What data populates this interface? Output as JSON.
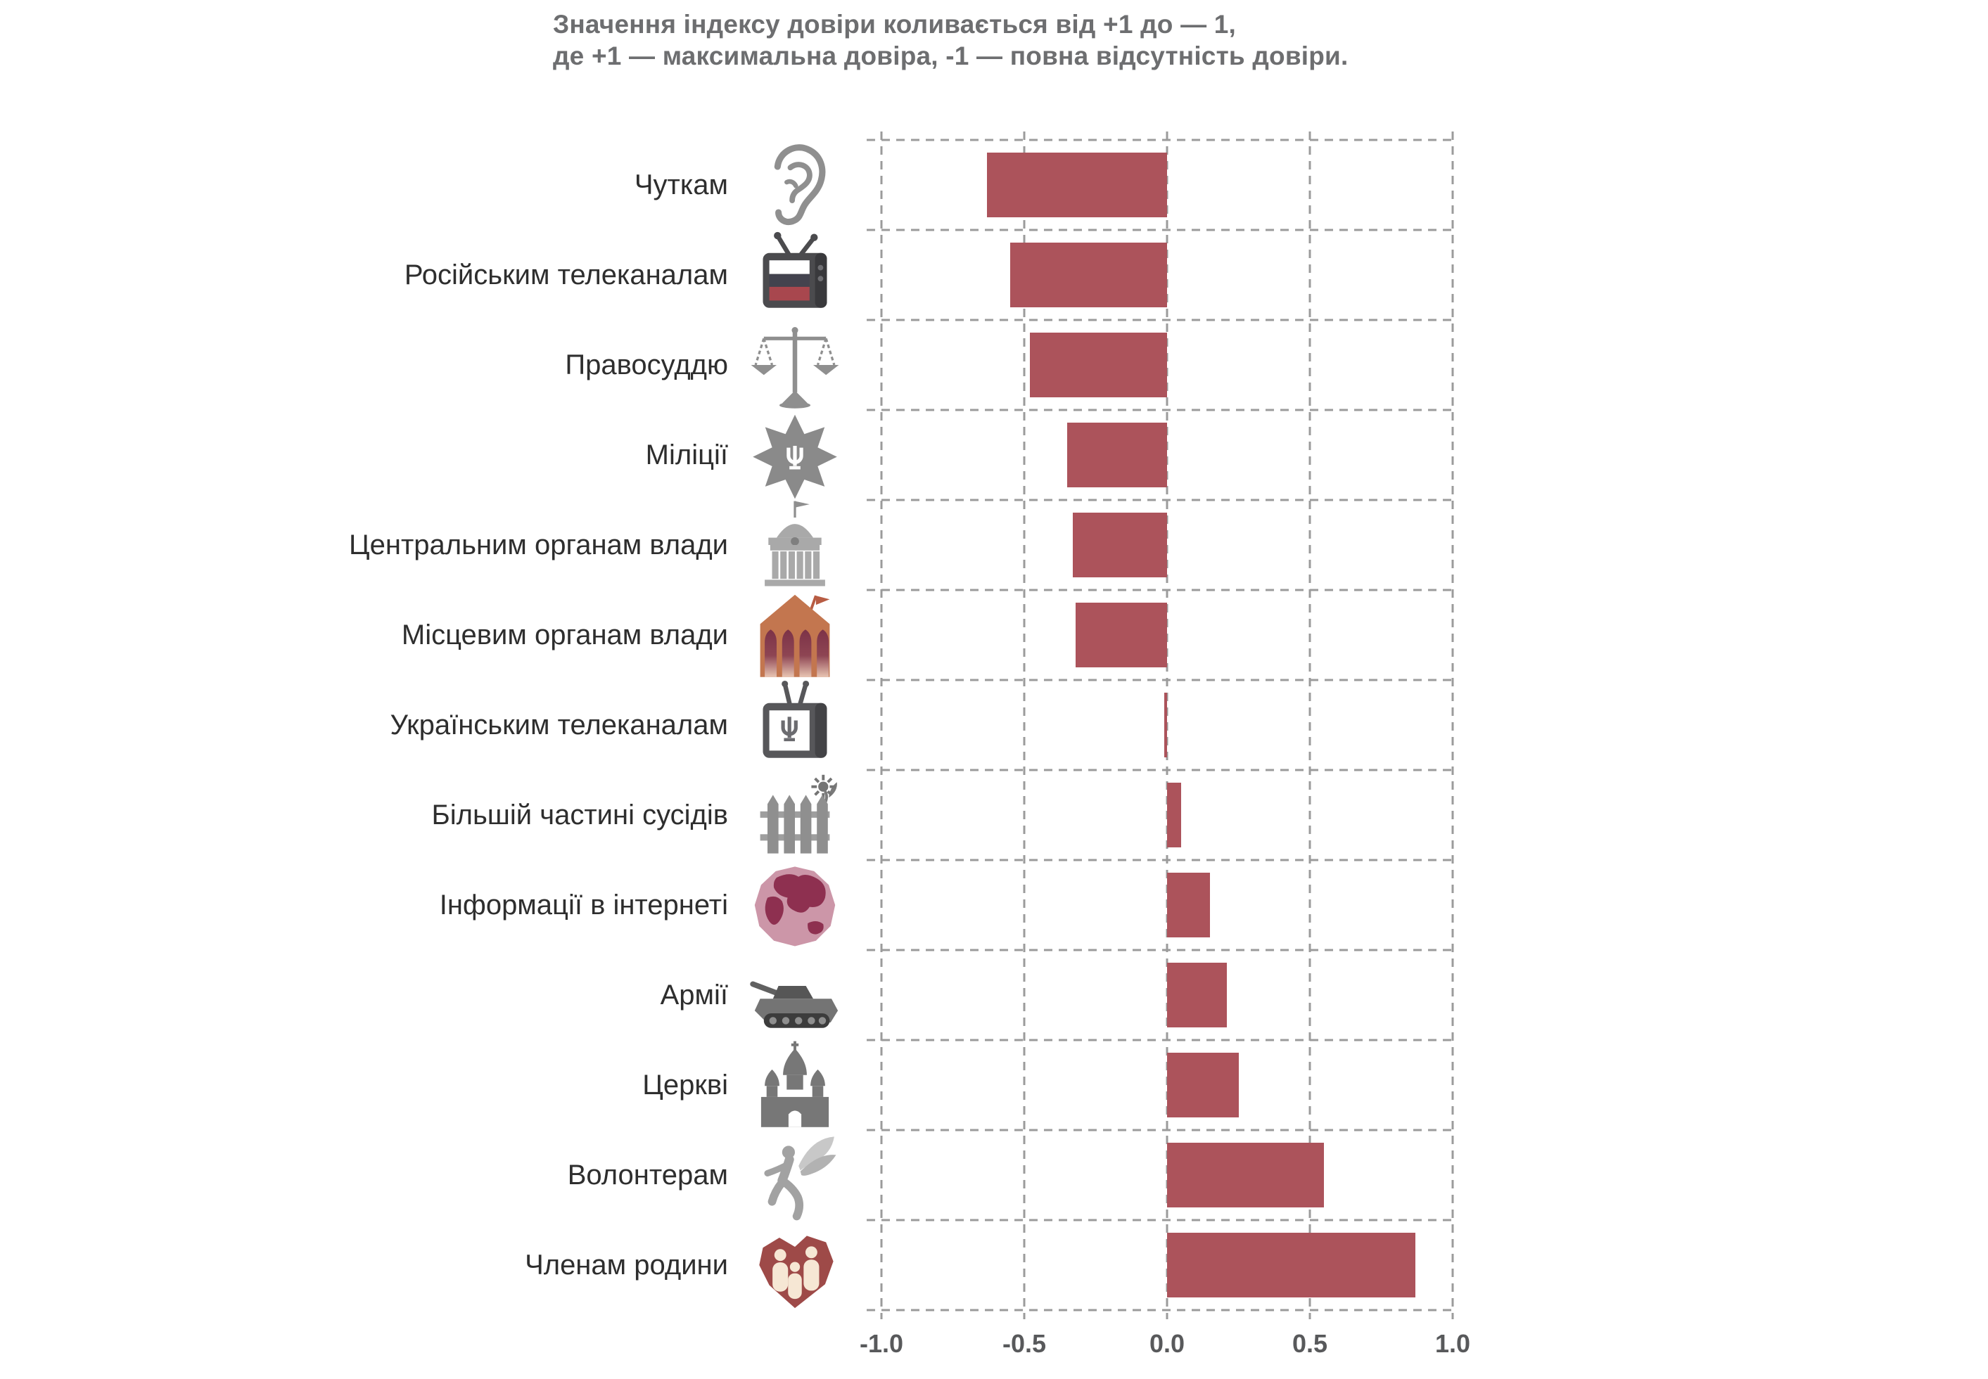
{
  "chart_data": {
    "type": "bar",
    "orientation": "horizontal",
    "note_lines": [
      "Значення індексу довіри коливається від +1 до — 1,",
      "де +1 — максимальна довіра, -1 — повна відсутність довіри."
    ],
    "xlabel": "",
    "ylabel": "",
    "xlim": [
      -1.0,
      1.0
    ],
    "grid": "dashed",
    "legend": "none",
    "bar_color": "#AC535B",
    "x_ticks": [
      {
        "label": "-1.0",
        "value": -1.0
      },
      {
        "label": "-0.5",
        "value": -0.5
      },
      {
        "label": "0.0",
        "value": 0.0
      },
      {
        "label": "0.5",
        "value": 0.5
      },
      {
        "label": "1.0",
        "value": 1.0
      }
    ],
    "categories": [
      {
        "label": "Чуткам",
        "icon": "ear-icon",
        "value": -0.63
      },
      {
        "label": "Російським телеканалам",
        "icon": "russian-tv-icon",
        "value": -0.55
      },
      {
        "label": "Правосуддю",
        "icon": "scales-icon",
        "value": -0.48
      },
      {
        "label": "Міліції",
        "icon": "militia-star-icon",
        "value": -0.35
      },
      {
        "label": "Центральним органам влади",
        "icon": "parliament-icon",
        "value": -0.33
      },
      {
        "label": "Місцевим органам влади",
        "icon": "local-government-icon",
        "value": -0.32
      },
      {
        "label": "Українським телеканалам",
        "icon": "ukrainian-tv-icon",
        "value": -0.01
      },
      {
        "label": "Більшій частині сусідів",
        "icon": "fence-icon",
        "value": 0.05
      },
      {
        "label": "Інформації в інтернеті",
        "icon": "globe-icon",
        "value": 0.15
      },
      {
        "label": "Армії",
        "icon": "tank-icon",
        "value": 0.21
      },
      {
        "label": "Церкві",
        "icon": "church-icon",
        "value": 0.25
      },
      {
        "label": "Волонтерам",
        "icon": "angel-icon",
        "value": 0.55
      },
      {
        "label": "Членам родини",
        "icon": "family-heart-icon",
        "value": 0.87
      }
    ]
  },
  "colors": {
    "background": "#FFFFFF",
    "bar": "#AC535B",
    "grid": "#9B9B9B",
    "title_text": "#6D6E70",
    "label_text": "#2E2E2E",
    "axis_text": "#58595B",
    "icon_gray": "#8F8F8F",
    "icon_dark_gray": "#4B4B4E",
    "icon_terracotta": "#C3764F",
    "icon_arch_maroon": "#7C3247",
    "icon_globe_pink": "#CC96A8",
    "icon_globe_land": "#8E3050",
    "icon_heart_brick": "#9E4A48",
    "icon_heart_figures": "#F6E7D4",
    "icon_tv_flag_red": "#A8474E"
  }
}
